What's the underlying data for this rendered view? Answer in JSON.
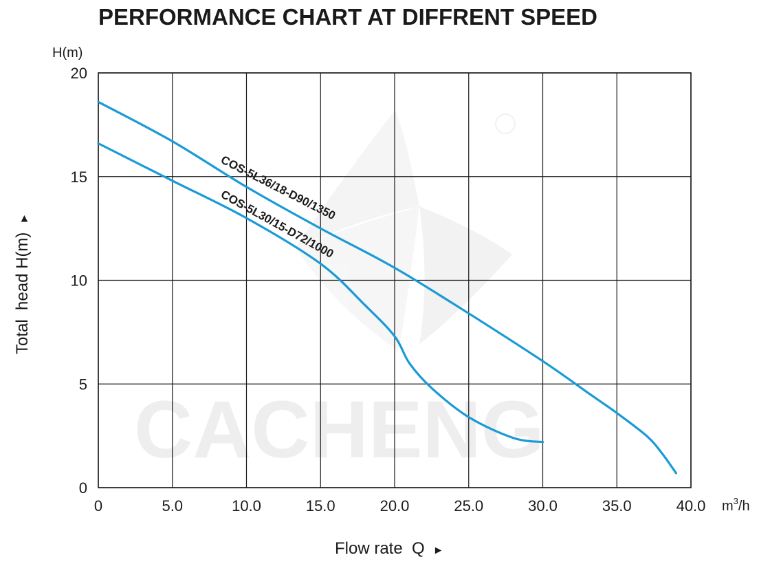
{
  "chart_data": {
    "type": "line",
    "title": "PERFORMANCE CHART AT DIFFRENT SPEED",
    "xlabel": "Flow rate  Q",
    "xlabel_arrow": "►",
    "ylabel": "Total  head H(m)",
    "ylabel_arrow": "►",
    "y_unit": "H(m)",
    "x_unit_base": "m",
    "x_unit_sup": "3",
    "x_unit_tail": "/h",
    "xlim": [
      0,
      40
    ],
    "ylim": [
      0,
      20
    ],
    "x_ticks": [
      0,
      5,
      10,
      15,
      20,
      25,
      30,
      35,
      40
    ],
    "x_tick_labels": [
      "0",
      "5.0",
      "10.0",
      "15.0",
      "20.0",
      "25.0",
      "30.0",
      "35.0",
      "40.0"
    ],
    "y_ticks": [
      0,
      5,
      10,
      15,
      20
    ],
    "y_tick_labels": [
      "0",
      "5",
      "10",
      "15",
      "20"
    ],
    "grid": true,
    "watermark": "CACHENG",
    "series": [
      {
        "name": "COS-5L36/18-D90/1350",
        "color": "#1a9ad6",
        "x": [
          0,
          5,
          10,
          15,
          20,
          25,
          30,
          33,
          35,
          37,
          38,
          39
        ],
        "y": [
          18.6,
          16.7,
          14.5,
          12.5,
          10.6,
          8.4,
          6.1,
          4.6,
          3.6,
          2.5,
          1.7,
          0.7
        ]
      },
      {
        "name": "COS-5L30/15-D72/1000",
        "color": "#1a9ad6",
        "x": [
          0,
          5,
          10,
          15,
          18,
          20,
          21,
          22.5,
          25,
          28,
          30
        ],
        "y": [
          16.6,
          14.8,
          13.0,
          10.8,
          8.8,
          7.3,
          6.0,
          4.8,
          3.4,
          2.4,
          2.2
        ]
      }
    ]
  }
}
